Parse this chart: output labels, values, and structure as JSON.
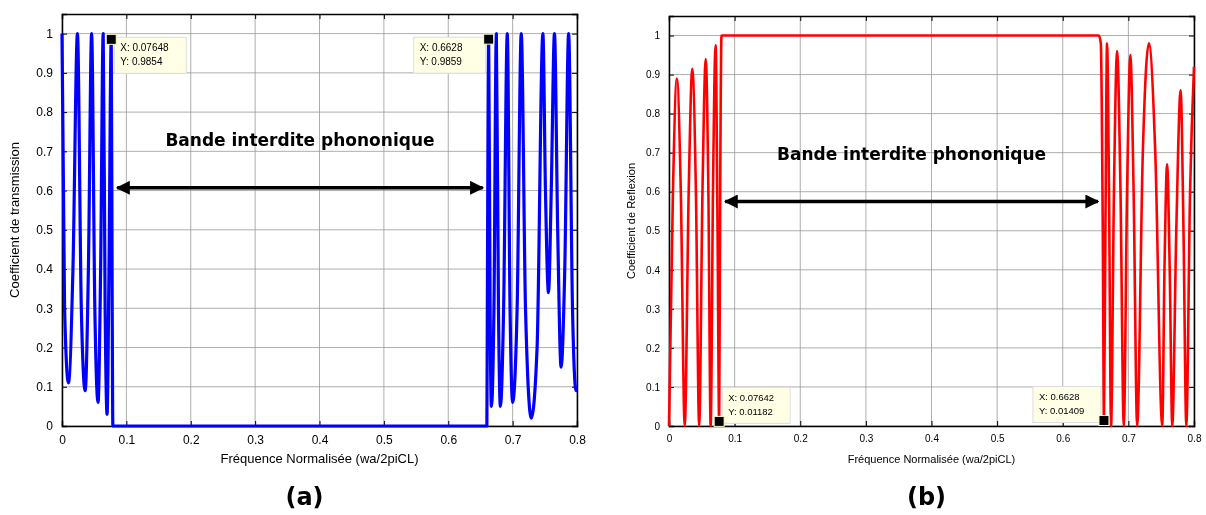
{
  "chart_data": [
    {
      "type": "line",
      "title": "(a)",
      "xlabel": "Fréquence Normalisée (wa/2piCL)",
      "ylabel": "Coefficient de transmission",
      "grid": true,
      "line_style": "solid",
      "xlim": [
        0,
        0.8
      ],
      "xticks": [
        0,
        0.1,
        0.2,
        0.3,
        0.4,
        0.5,
        0.6,
        0.7,
        0.8
      ],
      "ylim": [
        0,
        1.05
      ],
      "yticks": [
        0,
        0.1,
        0.2,
        0.3,
        0.4,
        0.5,
        0.6,
        0.7,
        0.8,
        0.9,
        1
      ],
      "series": [
        {
          "color": "#0000ff",
          "x": [
            0,
            0.004,
            0.01,
            0.017,
            0.024,
            0.03,
            0.036,
            0.041,
            0.046,
            0.051,
            0.056,
            0.06,
            0.064,
            0.067,
            0.07,
            0.073,
            0.07648,
            0.078,
            0.079,
            0.1,
            0.3,
            0.5,
            0.65,
            0.66,
            0.6607,
            0.6628,
            0.665,
            0.667,
            0.671,
            0.6747,
            0.678,
            0.681,
            0.686,
            0.6917,
            0.696,
            0.7,
            0.707,
            0.7134,
            0.72,
            0.729,
            0.738,
            0.747,
            0.751,
            0.7557,
            0.76,
            0.765,
            0.77,
            0.7753,
            0.781,
            0.787,
            0.793,
            0.7985,
            0.8
          ],
          "values": [
            1,
            0.3,
            0.11,
            0.4,
            1,
            0.3,
            0.09,
            0.4,
            1,
            0.3,
            0.06,
            0.4,
            1,
            0.3,
            0.03,
            0.4,
            0.9854,
            0.3,
            0,
            0,
            0,
            0,
            0,
            0,
            0.3,
            0.9859,
            0.3,
            0.05,
            0.3,
            1,
            0.3,
            0.05,
            0.3,
            1,
            0.3,
            0.06,
            0.3,
            1,
            0.3,
            0.02,
            0.2,
            1,
            0.6,
            0.34,
            0.6,
            1,
            0.5,
            0.15,
            0.4,
            1,
            0.3,
            0.09,
            0.09
          ]
        }
      ],
      "annotations": [
        {
          "text": "X: 0.07648\nY: 0.9854",
          "x": 0.07648,
          "y": 0.9854
        },
        {
          "text": "X: 0.6628\nY: 0.9859",
          "x": 0.6628,
          "y": 0.9859
        },
        "Bande interdite phononique"
      ]
    },
    {
      "type": "line",
      "title": "(b)",
      "xlabel": "Fréquence Normalisée (wa/2piCL)",
      "ylabel": "Coefficient de Reflexion",
      "grid": true,
      "line_style": "solid",
      "xlim": [
        0,
        0.8
      ],
      "xticks": [
        0,
        0.1,
        0.2,
        0.3,
        0.4,
        0.5,
        0.6,
        0.7,
        0.8
      ],
      "ylim": [
        0,
        1.05
      ],
      "yticks": [
        0,
        0.1,
        0.2,
        0.3,
        0.4,
        0.5,
        0.6,
        0.7,
        0.8,
        0.9,
        1
      ],
      "series": [
        {
          "color": "#ff0000",
          "x": [
            0,
            0.006,
            0.012,
            0.018,
            0.024,
            0.03,
            0.0355,
            0.041,
            0.046,
            0.051,
            0.056,
            0.06,
            0.0635,
            0.067,
            0.071,
            0.074,
            0.07642,
            0.078,
            0.08,
            0.2,
            0.4,
            0.6,
            0.655,
            0.658,
            0.661,
            0.6628,
            0.665,
            0.6675,
            0.6705,
            0.6736,
            0.678,
            0.6828,
            0.688,
            0.693,
            0.698,
            0.703,
            0.708,
            0.7134,
            0.722,
            0.7312,
            0.741,
            0.7516,
            0.755,
            0.759,
            0.763,
            0.7669,
            0.773,
            0.7796,
            0.784,
            0.7883,
            0.794,
            0.8
          ],
          "values": [
            0,
            0.6,
            0.89,
            0.6,
            0,
            0.6,
            0.915,
            0.6,
            0,
            0.6,
            0.94,
            0.6,
            0,
            0.6,
            0.975,
            0.5,
            0.01182,
            0.6,
            1,
            1,
            1,
            1,
            1,
            0.98,
            0.5,
            0.01409,
            0.5,
            0.98,
            0.6,
            0,
            0.6,
            0.96,
            0.6,
            0,
            0.6,
            0.95,
            0.6,
            0,
            0.7,
            0.98,
            0.7,
            0,
            0.4,
            0.67,
            0.4,
            0,
            0.5,
            0.86,
            0.5,
            0,
            0.6,
            0.92
          ]
        }
      ],
      "annotations": [
        {
          "text": "X: 0.07642\nY: 0.01182",
          "x": 0.07642,
          "y": 0.01182
        },
        {
          "text": "X: 0.6628\nY: 0.01409",
          "x": 0.6628,
          "y": 0.01409
        },
        "Bande interdite phononique"
      ]
    }
  ]
}
